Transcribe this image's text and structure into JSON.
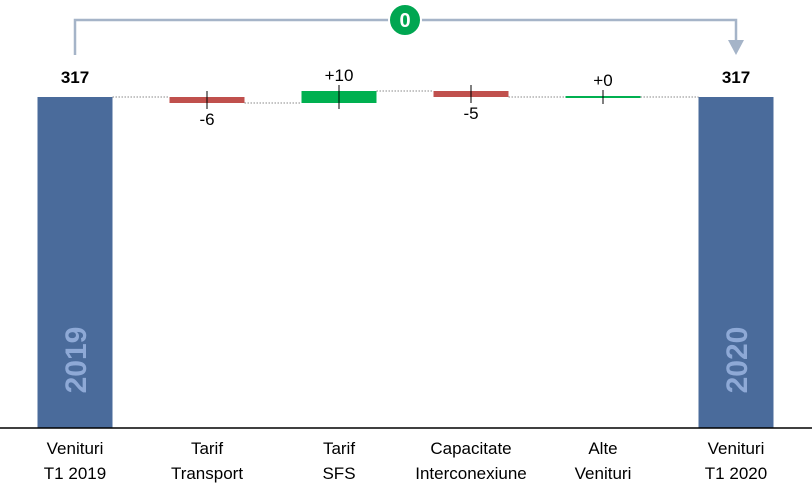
{
  "chart_data": {
    "type": "waterfall",
    "categories": [
      [
        "Venituri",
        "T1 2019"
      ],
      [
        "Tarif",
        "Transport"
      ],
      [
        "Tarif",
        "SFS"
      ],
      [
        "Capacitate",
        "Interconexiune"
      ],
      [
        "Alte",
        "Venituri"
      ],
      [
        "Venituri",
        "T1 2020"
      ]
    ],
    "values": [
      317,
      -6,
      10,
      -5,
      0,
      317
    ],
    "value_labels": [
      "317",
      "-6",
      "+10",
      "-5",
      "+0",
      "317"
    ],
    "kinds": [
      "total",
      "delta",
      "delta",
      "delta",
      "delta",
      "total"
    ],
    "total_inner_labels": [
      "2019",
      "",
      "",
      "",
      "",
      "2020"
    ],
    "difference_badge": "0",
    "colors": {
      "total": "#4a6b9b",
      "increase": "#00b050",
      "decrease": "#c0504d",
      "total_label": "#8ea9d6",
      "badge": "#00a651",
      "connector": "#a5b4c8"
    }
  }
}
